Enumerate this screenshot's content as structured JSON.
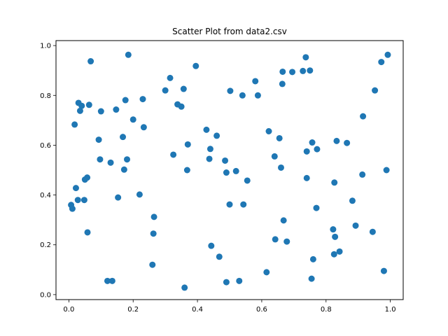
{
  "chart_data": {
    "type": "scatter",
    "title": "Scatter Plot from data2.csv",
    "xlabel": "",
    "ylabel": "",
    "xlim": [
      -0.04,
      1.04
    ],
    "ylim": [
      -0.02,
      1.02
    ],
    "xticks": [
      "0.0",
      "0.2",
      "0.4",
      "0.6",
      "0.8",
      "1.0"
    ],
    "yticks": [
      "0.0",
      "0.2",
      "0.4",
      "0.6",
      "0.8",
      "1.0"
    ],
    "grid": false,
    "legend": "none",
    "marker_color": "#1f77b4",
    "points": [
      {
        "x": 0.007,
        "y": 0.36
      },
      {
        "x": 0.011,
        "y": 0.345
      },
      {
        "x": 0.018,
        "y": 0.683
      },
      {
        "x": 0.022,
        "y": 0.428
      },
      {
        "x": 0.028,
        "y": 0.38
      },
      {
        "x": 0.03,
        "y": 0.77
      },
      {
        "x": 0.035,
        "y": 0.738
      },
      {
        "x": 0.04,
        "y": 0.758
      },
      {
        "x": 0.048,
        "y": 0.38
      },
      {
        "x": 0.05,
        "y": 0.462
      },
      {
        "x": 0.057,
        "y": 0.47
      },
      {
        "x": 0.058,
        "y": 0.25
      },
      {
        "x": 0.063,
        "y": 0.762
      },
      {
        "x": 0.068,
        "y": 0.937
      },
      {
        "x": 0.093,
        "y": 0.622
      },
      {
        "x": 0.097,
        "y": 0.543
      },
      {
        "x": 0.1,
        "y": 0.736
      },
      {
        "x": 0.12,
        "y": 0.055
      },
      {
        "x": 0.13,
        "y": 0.53
      },
      {
        "x": 0.135,
        "y": 0.055
      },
      {
        "x": 0.147,
        "y": 0.743
      },
      {
        "x": 0.153,
        "y": 0.39
      },
      {
        "x": 0.168,
        "y": 0.633
      },
      {
        "x": 0.172,
        "y": 0.502
      },
      {
        "x": 0.176,
        "y": 0.781
      },
      {
        "x": 0.181,
        "y": 0.543
      },
      {
        "x": 0.185,
        "y": 0.963
      },
      {
        "x": 0.2,
        "y": 0.703
      },
      {
        "x": 0.22,
        "y": 0.402
      },
      {
        "x": 0.23,
        "y": 0.785
      },
      {
        "x": 0.233,
        "y": 0.672
      },
      {
        "x": 0.26,
        "y": 0.12
      },
      {
        "x": 0.263,
        "y": 0.245
      },
      {
        "x": 0.265,
        "y": 0.312
      },
      {
        "x": 0.3,
        "y": 0.82
      },
      {
        "x": 0.315,
        "y": 0.87
      },
      {
        "x": 0.325,
        "y": 0.562
      },
      {
        "x": 0.338,
        "y": 0.764
      },
      {
        "x": 0.35,
        "y": 0.755
      },
      {
        "x": 0.357,
        "y": 0.826
      },
      {
        "x": 0.36,
        "y": 0.028
      },
      {
        "x": 0.368,
        "y": 0.5
      },
      {
        "x": 0.37,
        "y": 0.603
      },
      {
        "x": 0.395,
        "y": 0.918
      },
      {
        "x": 0.428,
        "y": 0.662
      },
      {
        "x": 0.437,
        "y": 0.545
      },
      {
        "x": 0.44,
        "y": 0.585
      },
      {
        "x": 0.443,
        "y": 0.196
      },
      {
        "x": 0.46,
        "y": 0.638
      },
      {
        "x": 0.468,
        "y": 0.152
      },
      {
        "x": 0.486,
        "y": 0.538
      },
      {
        "x": 0.49,
        "y": 0.05
      },
      {
        "x": 0.49,
        "y": 0.49
      },
      {
        "x": 0.5,
        "y": 0.362
      },
      {
        "x": 0.502,
        "y": 0.818
      },
      {
        "x": 0.52,
        "y": 0.496
      },
      {
        "x": 0.53,
        "y": 0.055
      },
      {
        "x": 0.54,
        "y": 0.8
      },
      {
        "x": 0.543,
        "y": 0.362
      },
      {
        "x": 0.555,
        "y": 0.458
      },
      {
        "x": 0.58,
        "y": 0.857
      },
      {
        "x": 0.588,
        "y": 0.8
      },
      {
        "x": 0.615,
        "y": 0.09
      },
      {
        "x": 0.622,
        "y": 0.656
      },
      {
        "x": 0.64,
        "y": 0.555
      },
      {
        "x": 0.642,
        "y": 0.222
      },
      {
        "x": 0.655,
        "y": 0.628
      },
      {
        "x": 0.66,
        "y": 0.51
      },
      {
        "x": 0.664,
        "y": 0.846
      },
      {
        "x": 0.665,
        "y": 0.895
      },
      {
        "x": 0.668,
        "y": 0.298
      },
      {
        "x": 0.678,
        "y": 0.213
      },
      {
        "x": 0.695,
        "y": 0.894
      },
      {
        "x": 0.728,
        "y": 0.898
      },
      {
        "x": 0.737,
        "y": 0.953
      },
      {
        "x": 0.74,
        "y": 0.575
      },
      {
        "x": 0.74,
        "y": 0.468
      },
      {
        "x": 0.75,
        "y": 0.9
      },
      {
        "x": 0.755,
        "y": 0.064
      },
      {
        "x": 0.757,
        "y": 0.611
      },
      {
        "x": 0.76,
        "y": 0.142
      },
      {
        "x": 0.77,
        "y": 0.348
      },
      {
        "x": 0.772,
        "y": 0.584
      },
      {
        "x": 0.822,
        "y": 0.262
      },
      {
        "x": 0.825,
        "y": 0.162
      },
      {
        "x": 0.826,
        "y": 0.45
      },
      {
        "x": 0.828,
        "y": 0.232
      },
      {
        "x": 0.833,
        "y": 0.617
      },
      {
        "x": 0.842,
        "y": 0.173
      },
      {
        "x": 0.865,
        "y": 0.609
      },
      {
        "x": 0.882,
        "y": 0.377
      },
      {
        "x": 0.892,
        "y": 0.277
      },
      {
        "x": 0.913,
        "y": 0.482
      },
      {
        "x": 0.915,
        "y": 0.716
      },
      {
        "x": 0.945,
        "y": 0.252
      },
      {
        "x": 0.952,
        "y": 0.82
      },
      {
        "x": 0.972,
        "y": 0.934
      },
      {
        "x": 0.98,
        "y": 0.095
      },
      {
        "x": 0.988,
        "y": 0.5
      },
      {
        "x": 0.992,
        "y": 0.963
      }
    ]
  }
}
